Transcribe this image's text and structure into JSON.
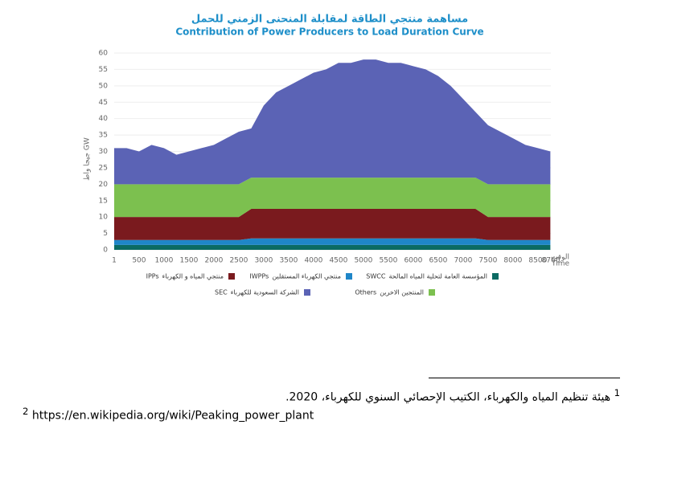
{
  "chart_data": {
    "type": "stacked_area",
    "title": "مساهمة منتجي الطاقة لمقابلة المنحنى الزمني للحمل",
    "subtitle": "Contribution of Power Producers to Load Duration Curve",
    "y_label": "جيجا واط GW",
    "x_label_ar": "الوقت",
    "x_label": "Time",
    "x": [
      1,
      250,
      500,
      750,
      1000,
      1250,
      1500,
      1750,
      2000,
      2250,
      2500,
      2750,
      3000,
      3250,
      3500,
      3750,
      4000,
      4250,
      4500,
      4750,
      5000,
      5250,
      5500,
      5750,
      6000,
      6250,
      6500,
      6750,
      7000,
      7250,
      7500,
      7750,
      8000,
      8250,
      8500,
      8750
    ],
    "series": [
      {
        "name": "SWCC",
        "name_ar": "المؤسسة العامة لتحلية المياه المالحة",
        "color": "#0b6b63",
        "values": [
          1.5,
          1.5,
          1.5,
          1.5,
          1.5,
          1.5,
          1.5,
          1.5,
          1.5,
          1.5,
          1.5,
          1.5,
          1.5,
          1.5,
          1.5,
          1.5,
          1.5,
          1.5,
          1.5,
          1.5,
          1.5,
          1.5,
          1.5,
          1.5,
          1.5,
          1.5,
          1.5,
          1.5,
          1.5,
          1.5,
          1.5,
          1.5,
          1.5,
          1.5,
          1.5,
          1.5
        ]
      },
      {
        "name": "IWPPs",
        "name_ar": "منتجي الكهرباء المستقلين",
        "color": "#1f86c8",
        "values": [
          1.5,
          1.5,
          1.5,
          1.5,
          1.5,
          1.5,
          1.5,
          1.5,
          1.5,
          1.5,
          1.5,
          2,
          2,
          2,
          2,
          2,
          2,
          2,
          2,
          2,
          2,
          2,
          2,
          2,
          2,
          2,
          2,
          2,
          2,
          2,
          1.5,
          1.5,
          1.5,
          1.5,
          1.5,
          1.5
        ]
      },
      {
        "name": "IPPs",
        "name_ar": "منتجي المياه و الكهرباء",
        "color": "#7a1a1e",
        "values": [
          7,
          7,
          7,
          7,
          7,
          7,
          7,
          7,
          7,
          7,
          7,
          9,
          9,
          9,
          9,
          9,
          9,
          9,
          9,
          9,
          9,
          9,
          9,
          9,
          9,
          9,
          9,
          9,
          9,
          9,
          7,
          7,
          7,
          7,
          7,
          7
        ]
      },
      {
        "name": "Others",
        "name_ar": "المنتجين الاخرين",
        "color": "#7cc04f",
        "values": [
          10,
          10,
          10,
          10,
          10,
          10,
          10,
          10,
          10,
          10,
          10,
          9.5,
          9.5,
          9.5,
          9.5,
          9.5,
          9.5,
          9.5,
          9.5,
          9.5,
          9.5,
          9.5,
          9.5,
          9.5,
          9.5,
          9.5,
          9.5,
          9.5,
          9.5,
          9.5,
          10,
          10,
          10,
          10,
          10,
          10
        ]
      },
      {
        "name": "SEC",
        "name_ar": "الشركة السعودية للكهرباء",
        "color": "#5b63b5",
        "values": [
          11,
          11,
          10,
          12,
          11,
          9,
          10,
          11,
          12,
          14,
          16,
          15,
          22,
          26,
          28,
          30,
          32,
          33,
          35,
          35,
          36,
          36,
          35,
          35,
          34,
          33,
          31,
          28,
          24,
          20,
          18,
          16,
          14,
          12,
          11,
          10
        ]
      }
    ],
    "xlim": [
      1,
      8760
    ],
    "xticks": [
      1,
      500,
      1000,
      1500,
      2000,
      2500,
      3000,
      3500,
      4000,
      4500,
      5000,
      5500,
      6000,
      6500,
      7000,
      7500,
      8000,
      8500,
      8760
    ],
    "ylim": [
      0,
      60
    ],
    "yticks": [
      0,
      5,
      10,
      15,
      20,
      25,
      30,
      35,
      40,
      45,
      50,
      55,
      60
    ]
  },
  "footnotes": [
    {
      "number": "1",
      "text": "هيئة تنظيم المياه والكهرباء، الكتيب الإحصائي السنوي للكهرباء، 2020."
    },
    {
      "number": "2",
      "text": "https://en.wikipedia.org/wiki/Peaking_power_plant"
    }
  ]
}
